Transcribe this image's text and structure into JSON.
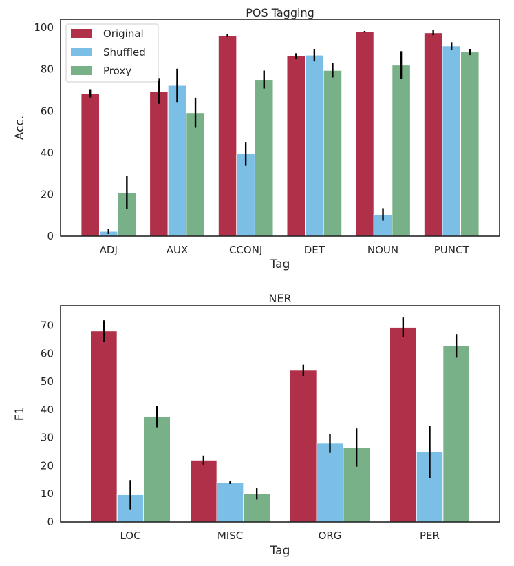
{
  "colors": {
    "original": "#b0304a",
    "shuffled": "#7bbfe6",
    "proxy": "#78b188",
    "error_bar": "#000000",
    "axis": "#262626"
  },
  "chart_data": [
    {
      "type": "bar",
      "title": "POS Tagging",
      "xlabel": "Tag",
      "ylabel": "Acc.",
      "ylim": [
        0,
        104
      ],
      "yticks": [
        0,
        20,
        40,
        60,
        80,
        100
      ],
      "legend": {
        "placement": "top-left",
        "entries": [
          "Original",
          "Shuffled",
          "Proxy"
        ]
      },
      "categories": [
        "ADJ",
        "AUX",
        "CCONJ",
        "DET",
        "NOUN",
        "PUNCT"
      ],
      "series": [
        {
          "name": "Original",
          "values": [
            68.5,
            69.5,
            96.2,
            86.4,
            98.0,
            97.5
          ],
          "errors": [
            2.0,
            6.0,
            0.7,
            1.3,
            0.4,
            1.2
          ]
        },
        {
          "name": "Shuffled",
          "values": [
            2.3,
            72.3,
            39.5,
            86.8,
            10.4,
            91.2
          ],
          "errors": [
            1.3,
            8.0,
            5.7,
            3.0,
            3.0,
            1.8
          ]
        },
        {
          "name": "Proxy",
          "values": [
            20.9,
            59.2,
            75.1,
            79.5,
            82.0,
            88.3
          ],
          "errors": [
            8.0,
            7.2,
            4.3,
            3.4,
            6.7,
            1.5
          ]
        }
      ]
    },
    {
      "type": "bar",
      "title": "NER",
      "xlabel": "Tag",
      "ylabel": "F1",
      "ylim": [
        0,
        77
      ],
      "yticks": [
        0,
        10,
        20,
        30,
        40,
        50,
        60,
        70
      ],
      "categories": [
        "LOC",
        "MISC",
        "ORG",
        "PER"
      ],
      "series": [
        {
          "name": "Original",
          "values": [
            68.0,
            22.0,
            54.0,
            69.3
          ],
          "errors": [
            3.8,
            1.6,
            2.0,
            3.5
          ]
        },
        {
          "name": "Shuffled",
          "values": [
            9.7,
            14.0,
            28.0,
            25.0
          ],
          "errors": [
            5.2,
            0.5,
            3.4,
            9.3
          ]
        },
        {
          "name": "Proxy",
          "values": [
            37.5,
            10.0,
            26.5,
            62.7
          ],
          "errors": [
            3.8,
            2.0,
            6.8,
            4.2
          ]
        }
      ]
    }
  ]
}
